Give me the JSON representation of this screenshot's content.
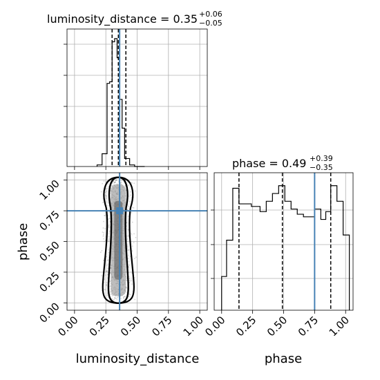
{
  "chart_data": {
    "type": "corner",
    "truth_color": "#4682b4",
    "grid": true,
    "parameters": [
      {
        "name": "luminosity_distance",
        "median": 0.35,
        "plus": 0.06,
        "minus": 0.05
      },
      {
        "name": "phase",
        "median": 0.49,
        "plus": 0.39,
        "minus": 0.35
      }
    ],
    "titles": {
      "luminosity_distance": {
        "label": "luminosity_distance = 0.35",
        "sup": "+0.06",
        "sub": "−0.05"
      },
      "phase": {
        "label": "phase = 0.49",
        "sup": "+0.39",
        "sub": "−0.35"
      }
    },
    "axis_labels": {
      "x_left": "luminosity_distance",
      "x_right": "phase",
      "y_left": "phase"
    },
    "ticks": {
      "luminosity_distance": [
        "0.00",
        "0.25",
        "0.50",
        "0.75",
        "1.00"
      ],
      "phase": [
        "0.00",
        "0.25",
        "0.50",
        "0.75",
        "1.00"
      ]
    },
    "tick_values": [
      0,
      0.25,
      0.5,
      0.75,
      1.0
    ],
    "xlim": [
      -0.06,
      1.06
    ],
    "ylim": [
      -0.06,
      1.06
    ],
    "truth": {
      "luminosity_distance": 0.36,
      "phase": 0.75
    },
    "quantiles": {
      "luminosity_distance": [
        0.3,
        0.35,
        0.41
      ],
      "phase": [
        0.14,
        0.49,
        0.88
      ]
    },
    "hist_luminosity_distance": {
      "edges": [
        0.18,
        0.22,
        0.26,
        0.28,
        0.3,
        0.32,
        0.34,
        0.36,
        0.38,
        0.4,
        0.44,
        0.48,
        0.56
      ],
      "counts": [
        0.5,
        4.0,
        26.0,
        26.5,
        39.0,
        40.0,
        34.0,
        21.0,
        12.0,
        2.5,
        0.5,
        0.0
      ],
      "ymax": 43
    },
    "hist_phase": {
      "edges": [
        0.0,
        0.04,
        0.09,
        0.14,
        0.19,
        0.24,
        0.31,
        0.36,
        0.41,
        0.46,
        0.51,
        0.56,
        0.61,
        0.66,
        0.7,
        0.75,
        0.8,
        0.84,
        0.88,
        0.93,
        0.98,
        1.03
      ],
      "counts": [
        13,
        27,
        47,
        41,
        41,
        40,
        38,
        42,
        45,
        48,
        42,
        39,
        37,
        36,
        36,
        39,
        35,
        38,
        48,
        42,
        29
      ],
      "ymax": 53
    },
    "density_2d": {
      "x_center": 0.35,
      "phase_min": 0.02,
      "phase_max": 1.0
    }
  }
}
